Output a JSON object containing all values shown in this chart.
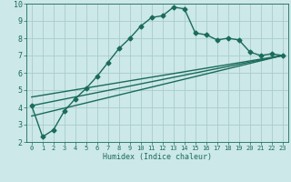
{
  "title": "",
  "xlabel": "Humidex (Indice chaleur)",
  "background_color": "#cce8e8",
  "grid_color": "#aacccc",
  "line_color": "#1a6b5a",
  "xlim": [
    -0.5,
    23.5
  ],
  "ylim": [
    2,
    10
  ],
  "yticks": [
    2,
    3,
    4,
    5,
    6,
    7,
    8,
    9,
    10
  ],
  "xticks": [
    0,
    1,
    2,
    3,
    4,
    5,
    6,
    7,
    8,
    9,
    10,
    11,
    12,
    13,
    14,
    15,
    16,
    17,
    18,
    19,
    20,
    21,
    22,
    23
  ],
  "curve1_x": [
    0,
    1,
    2,
    3,
    4,
    5,
    6,
    7,
    8,
    9,
    10,
    11,
    12,
    13,
    14,
    15,
    16,
    17,
    18,
    19,
    20,
    21,
    22,
    23
  ],
  "curve1_y": [
    4.1,
    2.3,
    2.7,
    3.8,
    4.5,
    5.1,
    5.8,
    6.6,
    7.4,
    8.0,
    8.7,
    9.2,
    9.3,
    9.8,
    9.7,
    8.3,
    8.2,
    7.9,
    8.0,
    7.9,
    7.2,
    7.0,
    7.1,
    7.0
  ],
  "curve2_x": [
    0,
    23
  ],
  "curve2_y": [
    4.1,
    7.0
  ],
  "curve3_x": [
    0,
    23
  ],
  "curve3_y": [
    4.1,
    7.0
  ],
  "ref_line1_x": [
    0,
    23
  ],
  "ref_line1_y": [
    3.5,
    7.0
  ],
  "ref_line2_x": [
    0,
    23
  ],
  "ref_line2_y": [
    4.1,
    7.0
  ],
  "ref_line3_x": [
    0,
    23
  ],
  "ref_line3_y": [
    4.6,
    7.0
  ],
  "marker": "D",
  "markersize": 2.5,
  "linewidth": 1.0
}
